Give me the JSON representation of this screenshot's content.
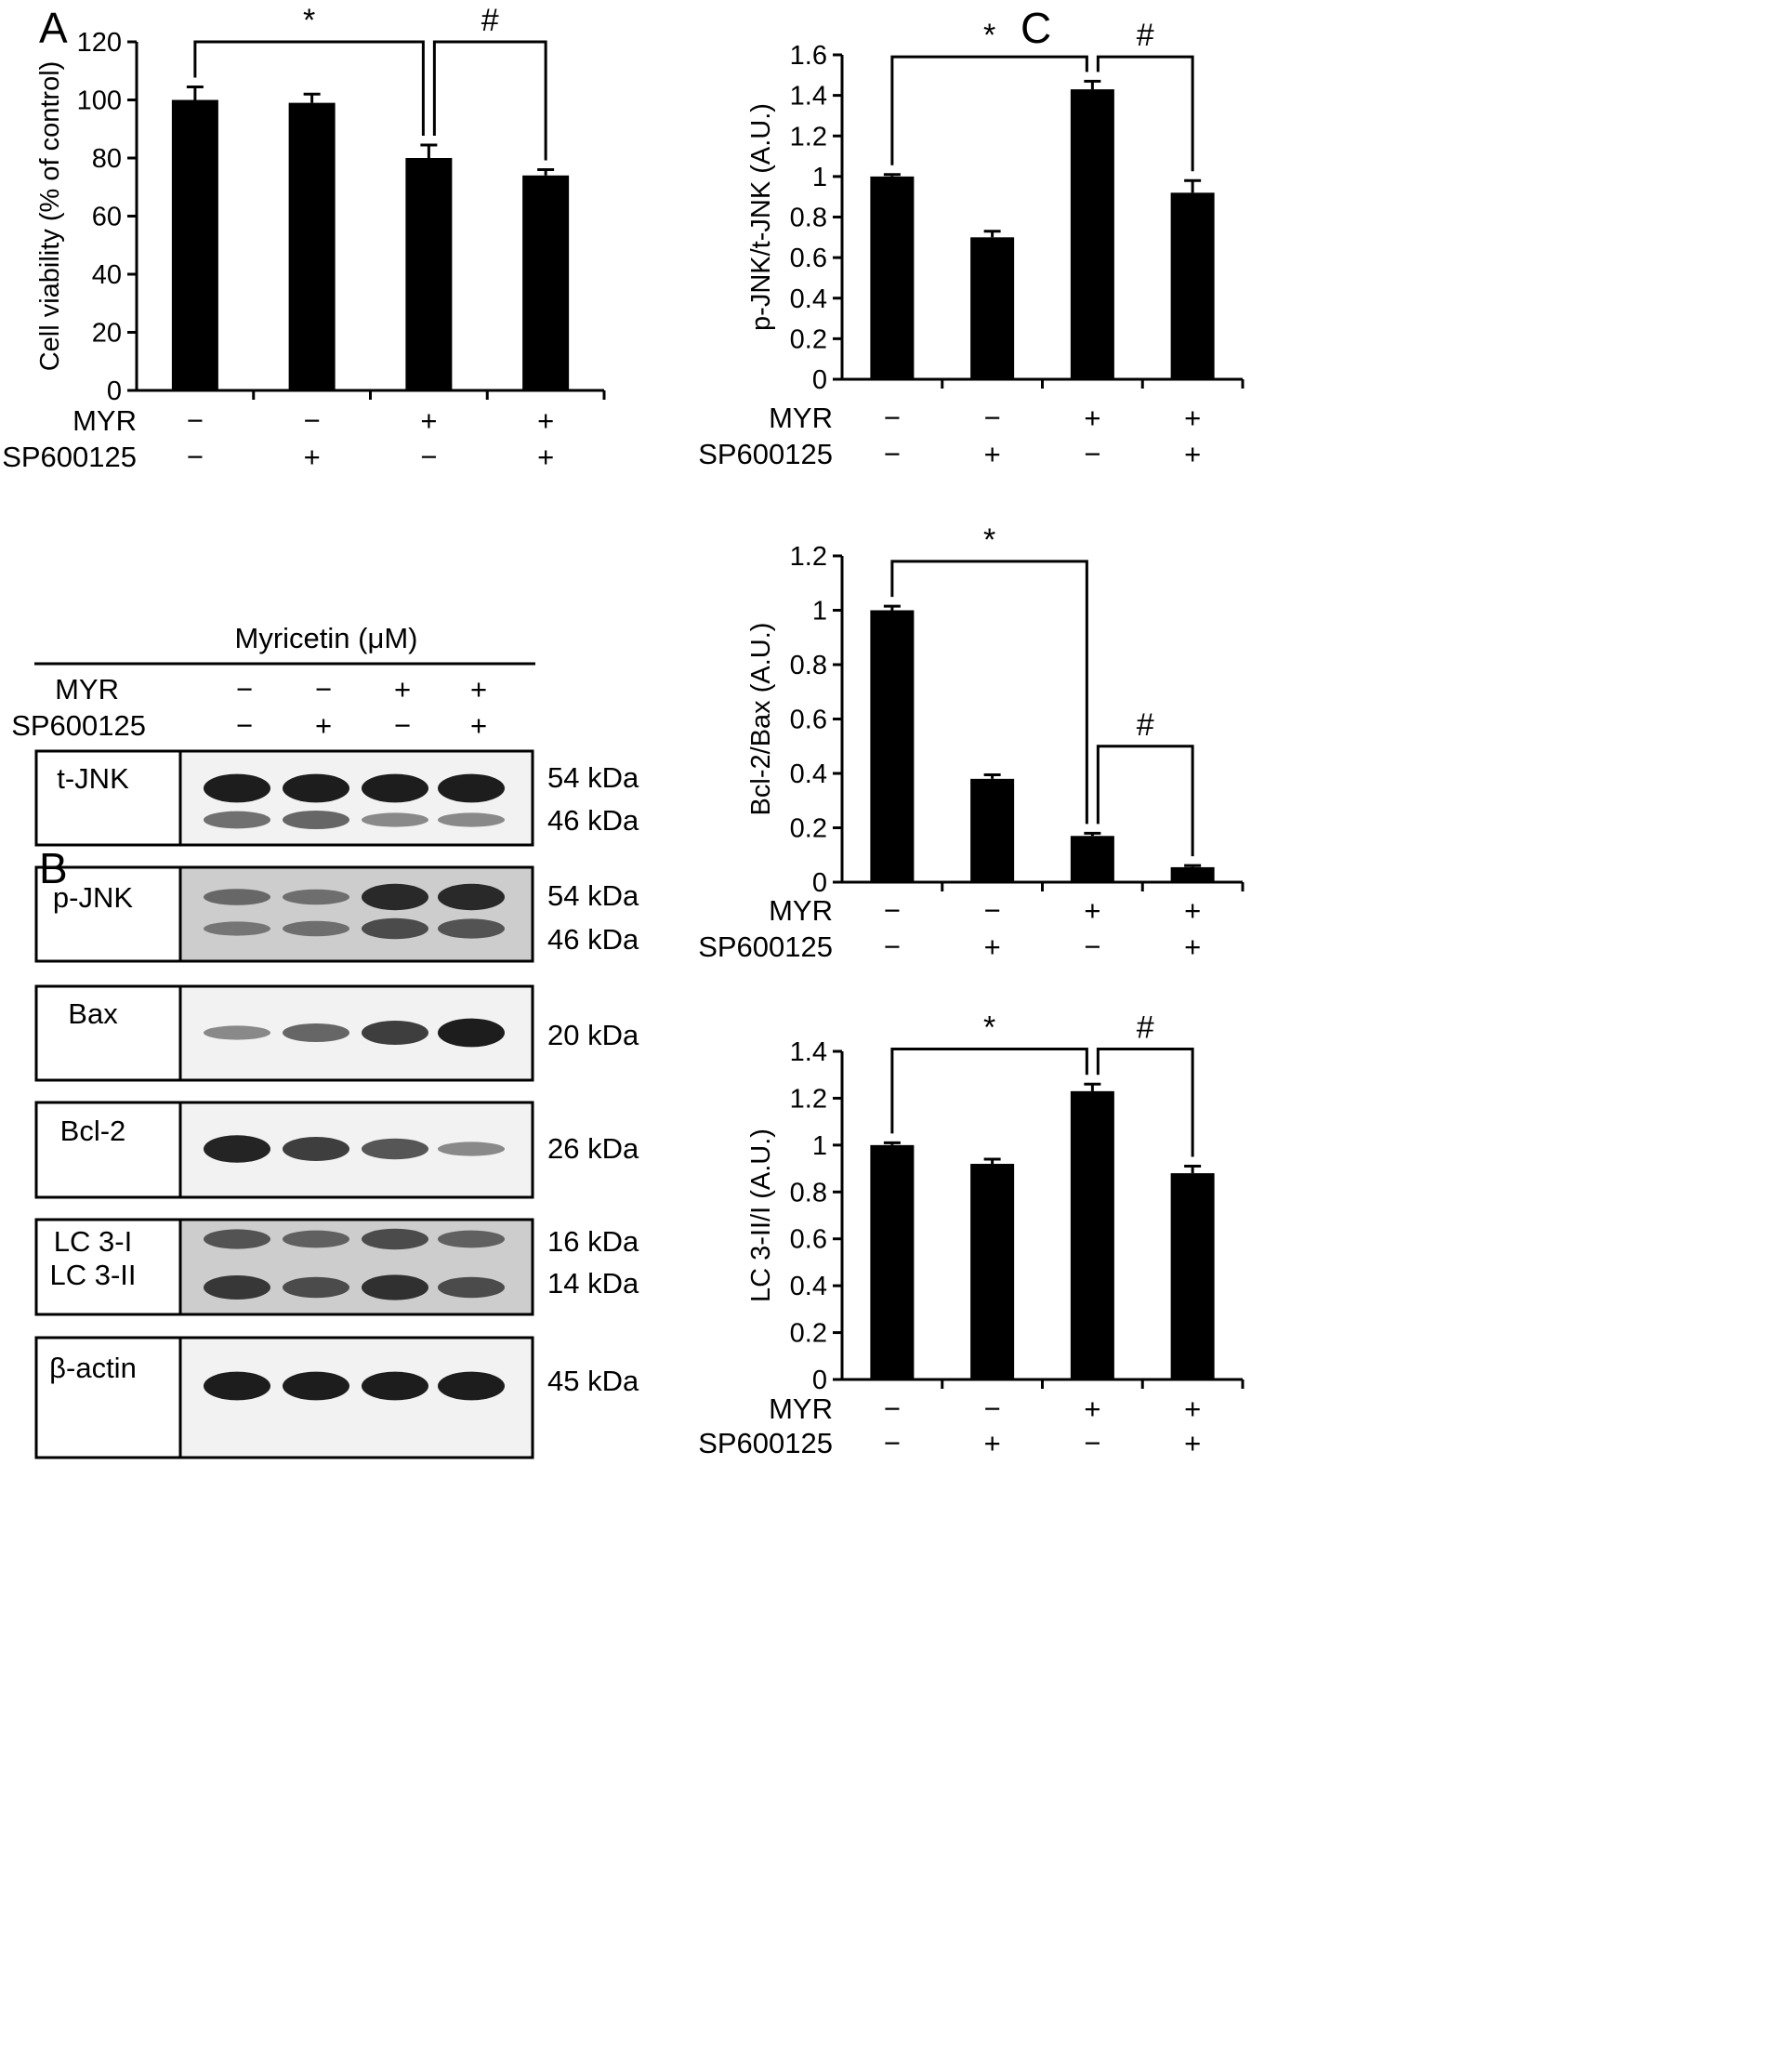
{
  "colors": {
    "bar": "#000000",
    "ink": "#000000",
    "blot_bg_light": "#f2f2f2",
    "blot_bg_dark": "#cdcdcd",
    "band": "#141414"
  },
  "panels": {
    "a": "A",
    "b": "B",
    "c": "C"
  },
  "treatments": {
    "myr_label": "MYR",
    "sp_label": "SP600125",
    "myr": [
      "−",
      "−",
      "+",
      "+"
    ],
    "sp": [
      "−",
      "+",
      "−",
      "+"
    ]
  },
  "blot": {
    "header": "Myricetin (μM)",
    "lanes": 4,
    "proteins": [
      {
        "name": "t-JNK",
        "bands": [
          {
            "kda": "54 kDa",
            "intensity": [
              0.95,
              0.95,
              0.95,
              0.95
            ]
          },
          {
            "kda": "46 kDa",
            "intensity": [
              0.45,
              0.5,
              0.3,
              0.3
            ]
          }
        ]
      },
      {
        "name": "p-JNK",
        "bands": [
          {
            "kda": "54 kDa",
            "intensity": [
              0.4,
              0.35,
              0.85,
              0.85
            ]
          },
          {
            "kda": "46 kDa",
            "intensity": [
              0.3,
              0.35,
              0.6,
              0.55
            ]
          }
        ]
      },
      {
        "name": "Bax",
        "bands": [
          {
            "kda": "20 kDa",
            "intensity": [
              0.3,
              0.5,
              0.75,
              0.95
            ]
          }
        ]
      },
      {
        "name": "Bcl-2",
        "bands": [
          {
            "kda": "26 kDa",
            "intensity": [
              0.9,
              0.75,
              0.6,
              0.3
            ]
          }
        ]
      },
      {
        "name": "LC 3-I",
        "name2": "LC 3-II",
        "bands": [
          {
            "kda": "16 kDa",
            "intensity": [
              0.55,
              0.45,
              0.6,
              0.45
            ]
          },
          {
            "kda": "14 kDa",
            "intensity": [
              0.75,
              0.6,
              0.8,
              0.6
            ]
          }
        ]
      },
      {
        "name": "β-actin",
        "bands": [
          {
            "kda": "45 kDa",
            "intensity": [
              0.95,
              0.95,
              0.95,
              0.95
            ]
          }
        ]
      }
    ]
  },
  "chart_data": [
    {
      "id": "A",
      "type": "bar",
      "ylabel": "Cell viability (% of control)",
      "ylim": [
        0,
        120
      ],
      "yticks": [
        0,
        20,
        40,
        60,
        80,
        100,
        120
      ],
      "values": [
        100,
        99,
        80,
        74
      ],
      "errors": [
        4.5,
        3,
        4.5,
        2
      ],
      "significance": [
        {
          "label": "*",
          "from": 0,
          "to": 2,
          "level": 120
        },
        {
          "label": "#",
          "from": 2,
          "to": 3,
          "level": 120
        }
      ]
    },
    {
      "id": "C1",
      "type": "bar",
      "ylabel": "p-JNK/t-JNK (A.U.)",
      "ylim": [
        0,
        1.6
      ],
      "yticks": [
        "0",
        "0.2",
        "0.4",
        "0.6",
        "0.8",
        "1",
        "1.2",
        "1.4",
        "1.6"
      ],
      "values": [
        1.0,
        0.7,
        1.43,
        0.92
      ],
      "errors": [
        0.01,
        0.03,
        0.04,
        0.06
      ],
      "significance": [
        {
          "label": "*",
          "from": 0,
          "to": 2,
          "level": 1.59
        },
        {
          "label": "#",
          "from": 2,
          "to": 3,
          "level": 1.59
        }
      ]
    },
    {
      "id": "C2",
      "type": "bar",
      "ylabel": "Bcl-2/Bax (A.U.)",
      "ylim": [
        0,
        1.2
      ],
      "yticks": [
        "0",
        "0.2",
        "0.4",
        "0.6",
        "0.8",
        "1",
        "1.2"
      ],
      "values": [
        1.0,
        0.38,
        0.17,
        0.055
      ],
      "errors": [
        0.015,
        0.015,
        0.01,
        0.006
      ],
      "significance": [
        {
          "label": "*",
          "from": 0,
          "to": 2,
          "level": 1.18
        },
        {
          "label": "#",
          "from": 2,
          "to": 3,
          "level": 0.5
        }
      ]
    },
    {
      "id": "C3",
      "type": "bar",
      "ylabel": "LC 3-II/I (A.U.)",
      "ylim": [
        0,
        1.4
      ],
      "yticks": [
        "0",
        "0.2",
        "0.4",
        "0.6",
        "0.8",
        "1",
        "1.2",
        "1.4"
      ],
      "values": [
        1.0,
        0.92,
        1.23,
        0.88
      ],
      "errors": [
        0.01,
        0.02,
        0.03,
        0.03
      ],
      "significance": [
        {
          "label": "*",
          "from": 0,
          "to": 2,
          "level": 1.41
        },
        {
          "label": "#",
          "from": 2,
          "to": 3,
          "level": 1.41
        }
      ]
    }
  ]
}
